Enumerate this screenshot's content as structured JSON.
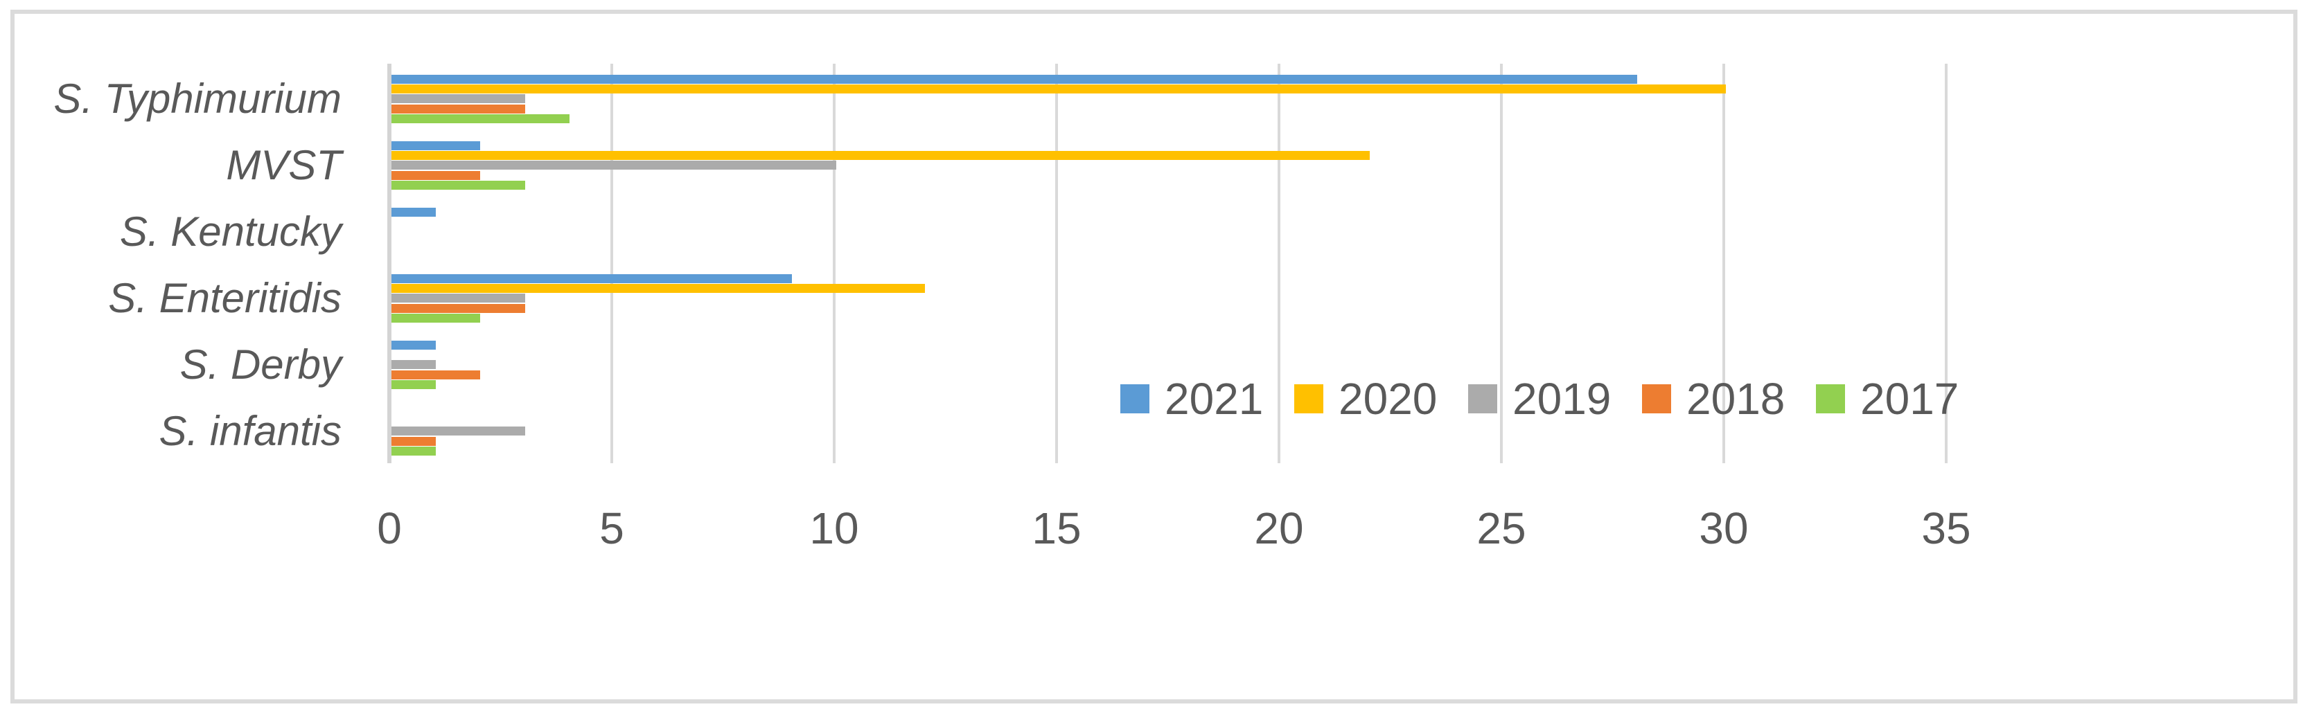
{
  "chart_data": {
    "type": "bar",
    "orientation": "horizontal",
    "title": "",
    "xlabel": "",
    "ylabel": "",
    "categories": [
      "S. Typhimurium",
      "MVST",
      "S. Kentucky",
      "S. Enteritidis",
      "S. Derby",
      "S. infantis"
    ],
    "series": [
      {
        "name": "2021",
        "color": "#5B9BD5",
        "values": [
          28,
          2,
          1,
          9,
          1,
          0
        ]
      },
      {
        "name": "2020",
        "color": "#FFC000",
        "values": [
          30,
          22,
          0,
          12,
          0,
          0
        ]
      },
      {
        "name": "2019",
        "color": "#ABABAB",
        "values": [
          3,
          10,
          0,
          3,
          1,
          3
        ]
      },
      {
        "name": "2018",
        "color": "#ED7D31",
        "values": [
          3,
          2,
          0,
          3,
          2,
          1
        ]
      },
      {
        "name": "2017",
        "color": "#92D050",
        "values": [
          4,
          3,
          0,
          2,
          1,
          1
        ]
      }
    ],
    "x_ticks": [
      0,
      5,
      10,
      15,
      20,
      25,
      30,
      35
    ],
    "xlim": [
      0,
      43
    ],
    "grid": true,
    "gridline_color": "#D9D9D9",
    "axis_line_color": "#D4D4D4",
    "text_color": "#595959",
    "frame_border_color": "#DBDBDB",
    "legend_position": "inside-middle-right",
    "legend_order": [
      "2021",
      "2020",
      "2019",
      "2018",
      "2017"
    ]
  }
}
